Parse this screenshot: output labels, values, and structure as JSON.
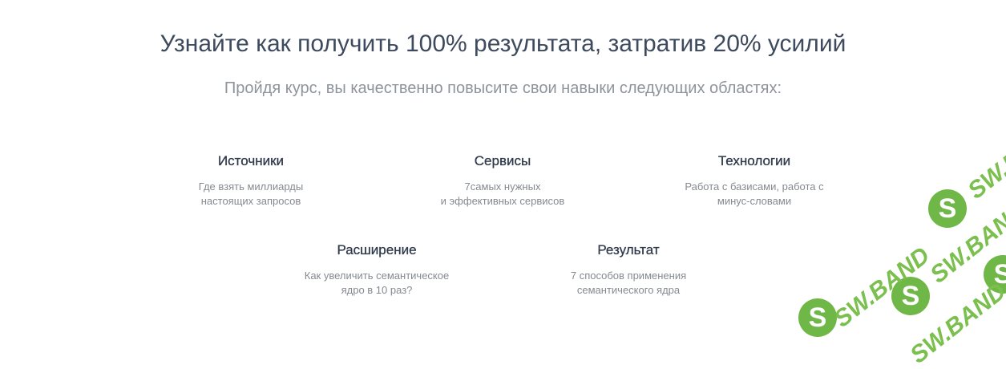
{
  "header": {
    "title": "Узнайте как получить 100% результата, затратив 20% усилий",
    "subtitle": "Пройдя курс, вы качественно повысите свои навыки следующих областях:"
  },
  "features": [
    {
      "title": "Источники",
      "description": "Где взять миллиарды\nнастоящих запросов"
    },
    {
      "title": "Сервисы",
      "description": "7самых нужных\nи эффективных сервисов"
    },
    {
      "title": "Технологии",
      "description": "Работа с базисами, работа с\nминус-словами"
    },
    {
      "title": "Расширение",
      "description": "Как увеличить семантическое\nядро в 10 раз?"
    },
    {
      "title": "Результат",
      "description": "7 способов применения\nсемантического ядра"
    }
  ],
  "watermark": {
    "text": "SW.BAND",
    "letter": "S",
    "color": "#6fb746"
  }
}
